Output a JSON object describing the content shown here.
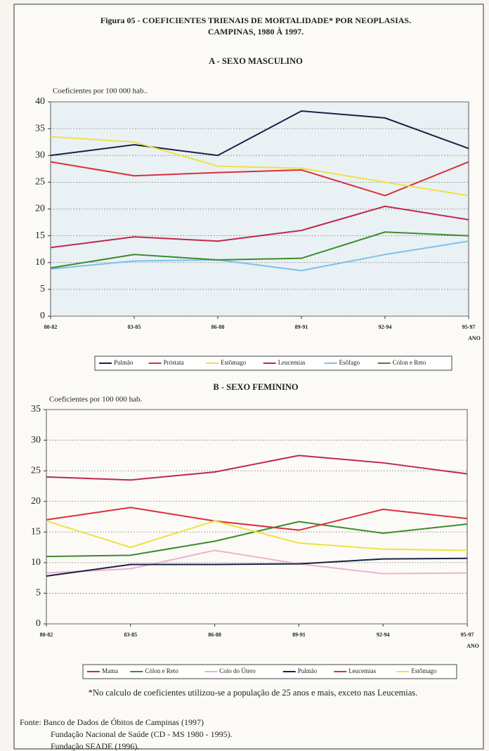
{
  "title": [
    "Figura 05 - COEFICIENTES TRIENAIS DE  MORTALIDADE* POR NEOPLASIAS.",
    "CAMPINAS, 1980 À 1997."
  ],
  "note": "*No calculo de coeficientes utilizou-se a população de 25 anos e mais, exceto  nas Leucemias.",
  "source": [
    "Fonte: Banco de Dados de Óbitos de Campinas (1997)",
    "Fundação Nacional de Saúde (CD - MS 1980 - 1995).",
    "Fundação SEADE (1996)."
  ],
  "chart_data": [
    {
      "type": "line",
      "title": "A - SEXO MASCULINO",
      "y_label": "Coeficientes por 100 000 hab..",
      "x_label": "ANO",
      "categories": [
        "80-82",
        "83-85",
        "86-88",
        "89-91",
        "92-94",
        "95-97"
      ],
      "ylim": [
        0,
        40
      ],
      "yticks": [
        0,
        5,
        10,
        15,
        20,
        25,
        30,
        35,
        40
      ],
      "grid": true,
      "series": [
        {
          "name": "Pulmão",
          "color": "#1c2145",
          "values": [
            30,
            32,
            30,
            38.3,
            37,
            31.3
          ]
        },
        {
          "name": "Próstata",
          "color": "#d8303a",
          "values": [
            28.8,
            26.2,
            26.8,
            27.3,
            22.5,
            28.8
          ]
        },
        {
          "name": "Estômago",
          "color": "#f0e040",
          "values": [
            33.5,
            32.5,
            28,
            27.6,
            25,
            22.5
          ]
        },
        {
          "name": "Leucemias",
          "color": "#c0284a",
          "values": [
            12.8,
            14.8,
            14,
            16,
            20.5,
            18
          ]
        },
        {
          "name": "Esôfago",
          "color": "#7cc0ec",
          "values": [
            8.8,
            10.3,
            10.5,
            8.5,
            11.5,
            14
          ]
        },
        {
          "name": "Cólon e Reto",
          "color": "#3d8a2c",
          "values": [
            9,
            11.5,
            10.5,
            10.8,
            15.7,
            15
          ]
        }
      ]
    },
    {
      "type": "line",
      "title": "B - SEXO FEMININO",
      "y_label": "Coeficientes por 100 000 hab.",
      "x_label": "ANO",
      "categories": [
        "80-82",
        "83-85",
        "86-88",
        "89-91",
        "92-94",
        "95-97"
      ],
      "ylim": [
        0,
        35
      ],
      "yticks": [
        0,
        5,
        10,
        15,
        20,
        25,
        30,
        35
      ],
      "grid": true,
      "series": [
        {
          "name": "Mama",
          "color": "#c0284a",
          "values": [
            24,
            23.5,
            24.8,
            27.5,
            26.3,
            24.5
          ]
        },
        {
          "name": "Cólon e Reto",
          "color": "#3d8a2c",
          "values": [
            11,
            11.2,
            13.5,
            16.7,
            14.8,
            16.3
          ]
        },
        {
          "name": "Colo do Útero",
          "color": "#f0b0d0",
          "values": [
            8.3,
            9,
            12,
            9.8,
            8.2,
            8.3
          ]
        },
        {
          "name": "Pulmão",
          "color": "#1c2145",
          "values": [
            7.8,
            9.7,
            9.7,
            9.8,
            10.6,
            10.7
          ]
        },
        {
          "name": "Leucemias",
          "color": "#d8303a",
          "values": [
            17,
            19,
            16.8,
            15.3,
            18.7,
            17.2
          ]
        },
        {
          "name": "Estômago",
          "color": "#f0e040",
          "values": [
            16.8,
            12.5,
            16.8,
            13.2,
            12.2,
            12
          ]
        }
      ]
    }
  ]
}
